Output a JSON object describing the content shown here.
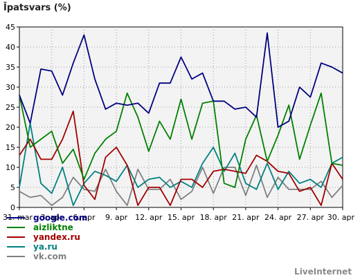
{
  "chart_data": {
    "type": "line",
    "title": "Īpatsvars (%)",
    "xlabel": "",
    "ylabel": "",
    "ylim": [
      0,
      45
    ],
    "yticks": [
      0,
      5,
      10,
      15,
      20,
      25,
      30,
      35,
      40,
      45
    ],
    "x": [
      "31. mar",
      "1. apr",
      "2. apr",
      "3. apr",
      "4. apr",
      "5. apr",
      "6. apr",
      "7. apr",
      "8. apr",
      "9. apr",
      "10. apr",
      "11. apr",
      "12. apr",
      "13. apr",
      "14. apr",
      "15. apr",
      "16. apr",
      "17. apr",
      "18. apr",
      "19. apr",
      "20. apr",
      "21. apr",
      "22. apr",
      "23. apr",
      "24. apr",
      "25. apr",
      "26. apr",
      "27. apr",
      "28. apr",
      "29. apr",
      "30. apr"
    ],
    "xtick_labels": [
      "31. mar",
      "3. apr",
      "6. apr",
      "9. apr",
      "12. apr",
      "15. apr",
      "18. apr",
      "21. apr",
      "24. apr",
      "27. apr",
      "30. apr"
    ],
    "grid": true,
    "legend_position": "bottom-left",
    "series": [
      {
        "name": "google.com",
        "color": "#000080",
        "values": [
          28,
          21,
          34.5,
          34,
          28,
          36,
          43,
          32,
          24.5,
          26,
          25.5,
          26,
          23.5,
          31,
          31,
          37.5,
          32,
          33.5,
          26.5,
          26.5,
          24.5,
          25,
          22.5,
          43.5,
          20,
          21.5,
          30,
          27.5,
          36,
          35,
          33.5
        ]
      },
      {
        "name": "aizliktne",
        "color": "#008000",
        "values": [
          28,
          15,
          17,
          19,
          11,
          14.5,
          7,
          13.5,
          17,
          19,
          28.5,
          22.5,
          14,
          21.5,
          17,
          27,
          17,
          26,
          26.5,
          6,
          5,
          17,
          23,
          11.5,
          18,
          25.5,
          12,
          20.5,
          28.5,
          11,
          10.5
        ]
      },
      {
        "name": "yandex.ru",
        "color": "#a00000",
        "values": [
          13,
          17,
          12,
          12,
          17,
          24,
          5.5,
          2,
          12.5,
          15,
          10.5,
          0.5,
          5,
          5,
          0.5,
          7,
          7,
          5,
          9,
          9.5,
          9,
          8.5,
          13,
          11.5,
          9,
          8.5,
          4,
          5,
          0.5,
          11,
          7
        ]
      },
      {
        "name": "ya.ru",
        "color": "#008080",
        "values": [
          5,
          21,
          6,
          3.5,
          10,
          0.5,
          6,
          9,
          8,
          6.5,
          10.5,
          5,
          7,
          7.5,
          5,
          6.5,
          5,
          11,
          15,
          9,
          13.5,
          6,
          4.5,
          11,
          4.5,
          9,
          6,
          7,
          5,
          11,
          12.5
        ]
      },
      {
        "name": "vk.com",
        "color": "#808080",
        "values": [
          4,
          2.5,
          3,
          0.5,
          2.5,
          7.5,
          4.5,
          4,
          9.5,
          4,
          0.5,
          9.5,
          4.5,
          4.5,
          7,
          2,
          4,
          10,
          3.5,
          10,
          10,
          3,
          10.5,
          2.5,
          7.5,
          4.5,
          4.5,
          4.5,
          6.5,
          2.5,
          5.5
        ]
      }
    ]
  },
  "credit": "LiveInternet"
}
